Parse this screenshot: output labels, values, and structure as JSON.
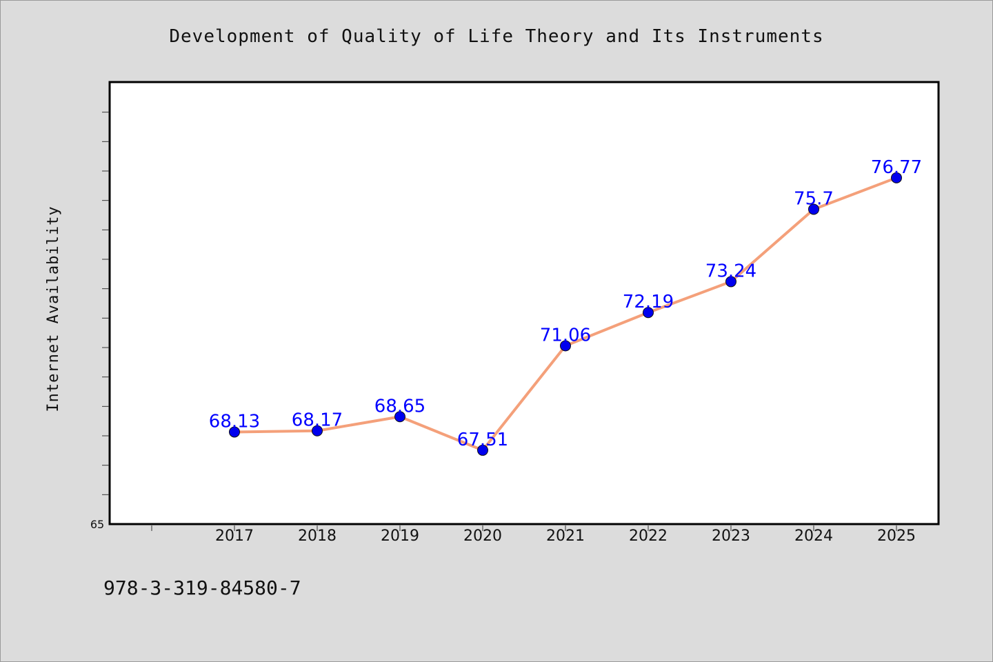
{
  "chart_data": {
    "type": "line",
    "title": "Development of Quality of Life Theory and Its Instruments",
    "ylabel": "Internet Availability",
    "xlabel": "",
    "categories": [
      "2017",
      "2018",
      "2019",
      "2020",
      "2021",
      "2022",
      "2023",
      "2024",
      "2025"
    ],
    "values": [
      68.13,
      68.17,
      68.65,
      67.51,
      71.06,
      72.19,
      73.24,
      75.7,
      76.77
    ],
    "data_labels": [
      "68.13",
      "68.17",
      "68.65",
      "67.51",
      "71.06",
      "72.19",
      "73.24",
      "75.7",
      "76.77"
    ],
    "ylim": [
      65,
      80
    ],
    "y_tick_labels": [
      "65"
    ],
    "grid": false,
    "line_color": "#f4a07a",
    "marker_color": "#0000ee",
    "label_color": "#0000ff",
    "plot_background": "#ffffff",
    "page_background": "#dcdcdc"
  },
  "footer_text": "978-3-319-84580-7"
}
